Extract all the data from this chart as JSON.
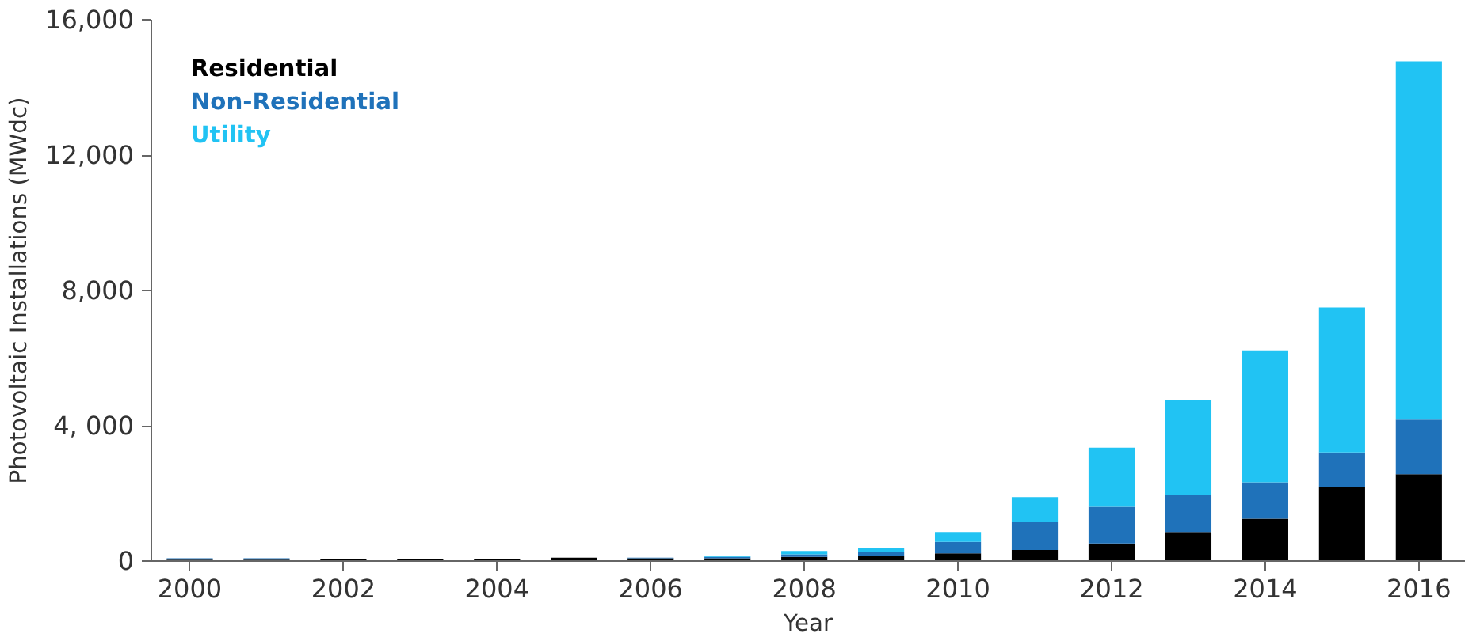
{
  "chart_data": {
    "type": "bar",
    "stacked": true,
    "xlabel": "Year",
    "ylabel": "Photovoltaic Installations (MWdc)",
    "x": [
      2000,
      2001,
      2002,
      2003,
      2004,
      2005,
      2006,
      2007,
      2008,
      2009,
      2010,
      2011,
      2012,
      2013,
      2014,
      2015,
      2016
    ],
    "series": [
      {
        "name": "Residential",
        "color": "#000000",
        "values": [
          40,
          40,
          60,
          60,
          60,
          100,
          80,
          80,
          120,
          150,
          230,
          330,
          520,
          860,
          1250,
          2180,
          2570
        ]
      },
      {
        "name": "Non-Residential",
        "color": "#1f72ba",
        "values": [
          40,
          40,
          null,
          null,
          0,
          0,
          20,
          40,
          80,
          130,
          340,
          830,
          1080,
          1080,
          1080,
          1030,
          1610
        ]
      },
      {
        "name": "Utility",
        "color": "#21c3f3",
        "values": [
          0,
          0,
          0,
          0,
          null,
          0,
          0,
          40,
          100,
          100,
          290,
          730,
          1750,
          2830,
          3900,
          4290,
          10590
        ]
      }
    ],
    "xlim": [
      1999.5,
      2016.6
    ],
    "xticks": [
      2000,
      2002,
      2004,
      2006,
      2008,
      2010,
      2012,
      2014,
      2016
    ],
    "ylim": [
      0,
      16000
    ],
    "yticks": [
      0,
      {
        "value": 4000,
        "label": "4, 000"
      },
      {
        "value": 8000,
        "label": "8,000"
      },
      {
        "value": 12000,
        "label": "12,000"
      },
      {
        "value": 16000,
        "label": "16,000"
      }
    ],
    "grid": false,
    "legend": "top left"
  }
}
